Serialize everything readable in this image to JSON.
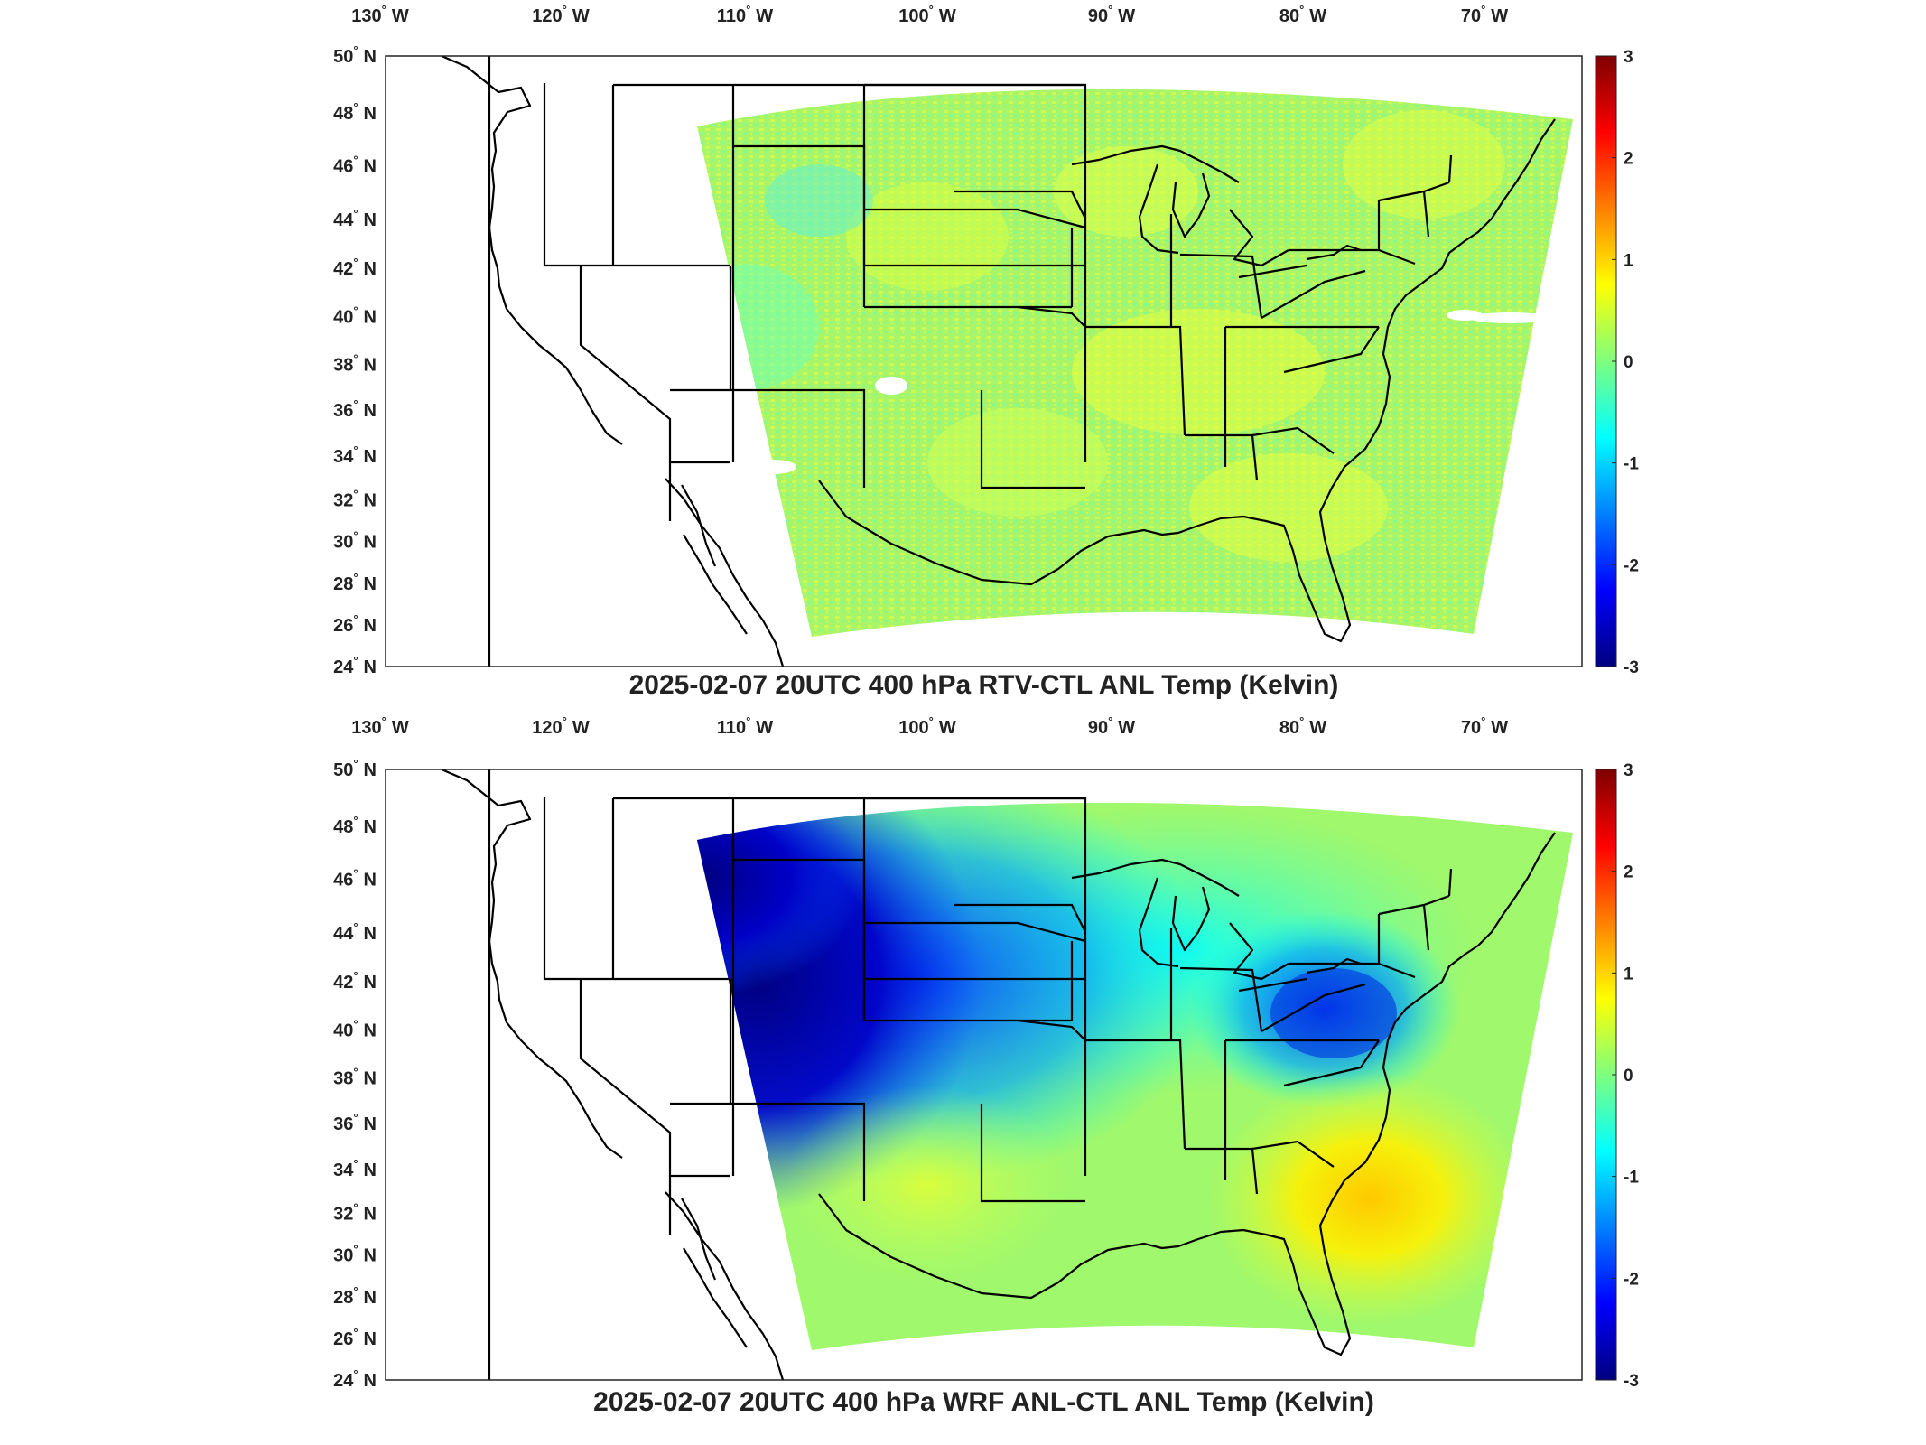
{
  "panels": [
    {
      "id": "top",
      "title": "2025-02-07 20UTC 400 hPa RTV-CTL ANL Temp (Kelvin)",
      "field": "rtv",
      "lon_ticks": [
        "130",
        "120",
        "110",
        "100",
        "90",
        "80",
        "70"
      ],
      "lon_suffix": "W",
      "lat_ticks": [
        "50",
        "48",
        "46",
        "44",
        "42",
        "40",
        "38",
        "36",
        "34",
        "32",
        "30",
        "28",
        "26",
        "24"
      ],
      "lat_suffix": "N",
      "colorbar": {
        "min": -3,
        "max": 3,
        "ticks": [
          "3",
          "2",
          "1",
          "0",
          "-1",
          "-2",
          "-3"
        ]
      }
    },
    {
      "id": "bottom",
      "title": "2025-02-07 20UTC 400 hPa WRF ANL-CTL ANL Temp (Kelvin)",
      "field": "wrf",
      "lon_ticks": [
        "130",
        "120",
        "110",
        "100",
        "90",
        "80",
        "70"
      ],
      "lon_suffix": "W",
      "lat_ticks": [
        "50",
        "48",
        "46",
        "44",
        "42",
        "40",
        "38",
        "36",
        "34",
        "32",
        "30",
        "28",
        "26",
        "24"
      ],
      "lat_suffix": "N",
      "colorbar": {
        "min": -3,
        "max": 3,
        "ticks": [
          "3",
          "2",
          "1",
          "0",
          "-1",
          "-2",
          "-3"
        ]
      }
    }
  ],
  "colormap": "jet",
  "colors": {
    "jet": [
      "#00007f",
      "#0000ff",
      "#007fff",
      "#00ffff",
      "#7fff7f",
      "#ffff00",
      "#ff7f00",
      "#ff0000",
      "#7f0000"
    ]
  }
}
